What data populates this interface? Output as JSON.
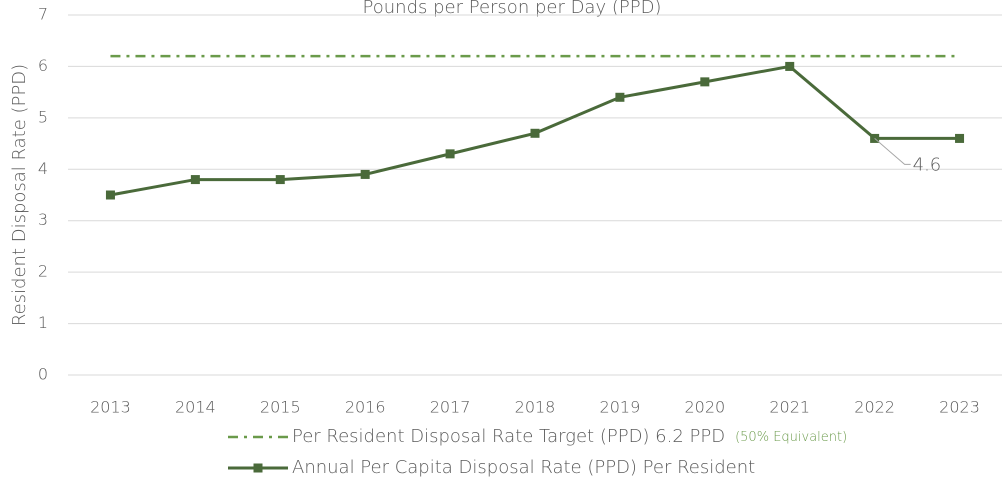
{
  "chart_data": {
    "type": "line",
    "title": "Pounds per Person per Day (PPD)",
    "y_label": "Resident Disposal Rate  (PPD)",
    "categories": [
      "2013",
      "2014",
      "2015",
      "2016",
      "2017",
      "2018",
      "2019",
      "2020",
      "2021",
      "2022",
      "2023"
    ],
    "series": [
      {
        "name": "Per Resident Disposal Rate Target (PPD) 6.2 PPD",
        "note": "(50% Equivalent)",
        "color": "#6a9a4a",
        "dash": "dash-dot",
        "values": [
          6.2,
          6.2,
          6.2,
          6.2,
          6.2,
          6.2,
          6.2,
          6.2,
          6.2,
          6.2,
          6.2
        ]
      },
      {
        "name": "Annual Per Capita Disposal Rate (PPD) Per Resident",
        "color": "#4a6a3a",
        "marker": "square",
        "values": [
          3.5,
          3.8,
          3.8,
          3.9,
          4.3,
          4.7,
          5.4,
          5.7,
          6.0,
          4.6,
          4.6
        ],
        "value_labels": [
          null,
          null,
          null,
          null,
          null,
          null,
          null,
          null,
          null,
          "4.6",
          null
        ]
      }
    ],
    "ylim": [
      0,
      7
    ],
    "yticks": [
      0,
      1,
      2,
      3,
      4,
      5,
      6,
      7
    ],
    "grid": true
  }
}
